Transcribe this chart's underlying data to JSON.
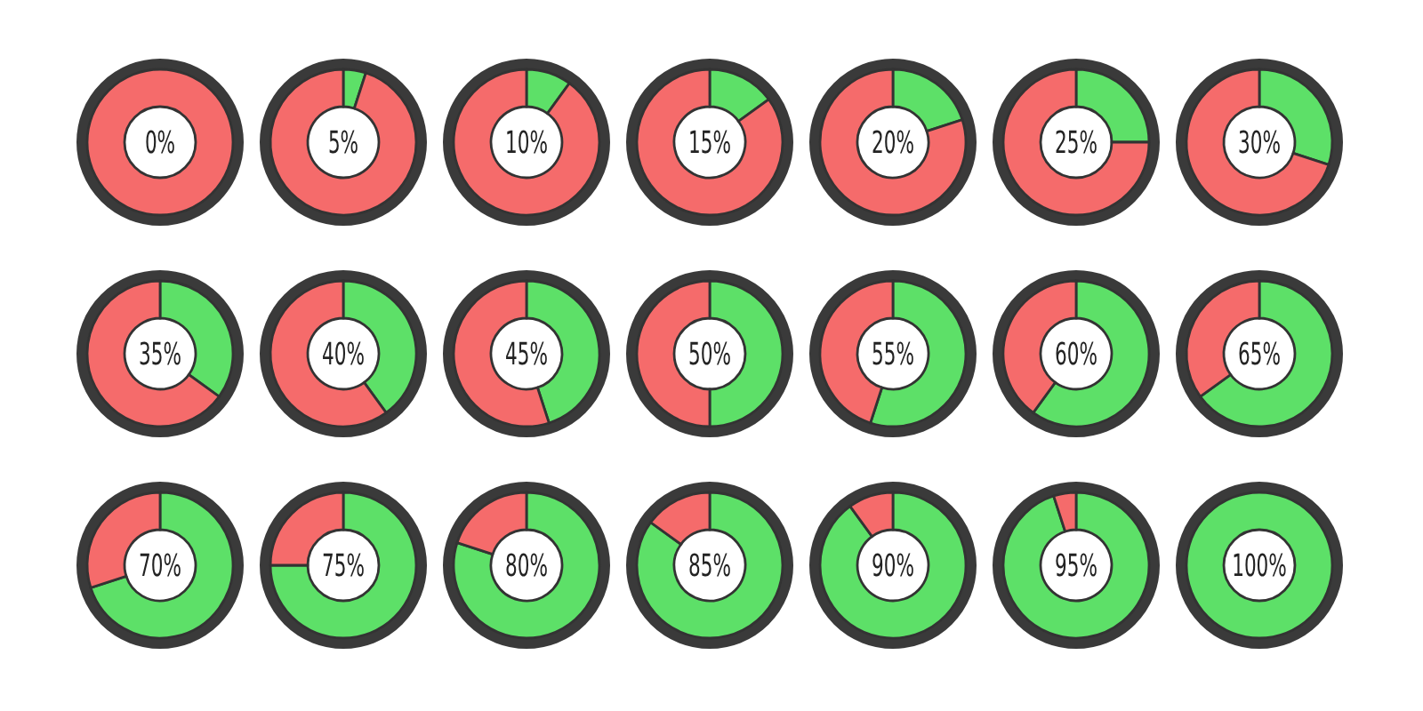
{
  "chart_data": [
    {
      "type": "donut",
      "categories": [
        null,
        null
      ],
      "values": [
        0,
        100
      ],
      "colors": [
        "#5de068",
        "#f56b6b"
      ],
      "annotations": [
        "0%"
      ]
    },
    {
      "type": "donut",
      "categories": [
        null,
        null
      ],
      "values": [
        5,
        95
      ],
      "colors": [
        "#5de068",
        "#f56b6b"
      ],
      "annotations": [
        "5%"
      ]
    },
    {
      "type": "donut",
      "categories": [
        null,
        null
      ],
      "values": [
        10,
        90
      ],
      "colors": [
        "#5de068",
        "#f56b6b"
      ],
      "annotations": [
        "10%"
      ]
    },
    {
      "type": "donut",
      "categories": [
        null,
        null
      ],
      "values": [
        15,
        85
      ],
      "colors": [
        "#5de068",
        "#f56b6b"
      ],
      "annotations": [
        "15%"
      ]
    },
    {
      "type": "donut",
      "categories": [
        null,
        null
      ],
      "values": [
        20,
        80
      ],
      "colors": [
        "#5de068",
        "#f56b6b"
      ],
      "annotations": [
        "20%"
      ]
    },
    {
      "type": "donut",
      "categories": [
        null,
        null
      ],
      "values": [
        25,
        75
      ],
      "colors": [
        "#5de068",
        "#f56b6b"
      ],
      "annotations": [
        "25%"
      ]
    },
    {
      "type": "donut",
      "categories": [
        null,
        null
      ],
      "values": [
        30,
        70
      ],
      "colors": [
        "#5de068",
        "#f56b6b"
      ],
      "annotations": [
        "30%"
      ]
    },
    {
      "type": "donut",
      "categories": [
        null,
        null
      ],
      "values": [
        35,
        65
      ],
      "colors": [
        "#5de068",
        "#f56b6b"
      ],
      "annotations": [
        "35%"
      ]
    },
    {
      "type": "donut",
      "categories": [
        null,
        null
      ],
      "values": [
        40,
        60
      ],
      "colors": [
        "#5de068",
        "#f56b6b"
      ],
      "annotations": [
        "40%"
      ]
    },
    {
      "type": "donut",
      "categories": [
        null,
        null
      ],
      "values": [
        45,
        55
      ],
      "colors": [
        "#5de068",
        "#f56b6b"
      ],
      "annotations": [
        "45%"
      ]
    },
    {
      "type": "donut",
      "categories": [
        null,
        null
      ],
      "values": [
        50,
        50
      ],
      "colors": [
        "#5de068",
        "#f56b6b"
      ],
      "annotations": [
        "50%"
      ]
    },
    {
      "type": "donut",
      "categories": [
        null,
        null
      ],
      "values": [
        55,
        45
      ],
      "colors": [
        "#5de068",
        "#f56b6b"
      ],
      "annotations": [
        "55%"
      ]
    },
    {
      "type": "donut",
      "categories": [
        null,
        null
      ],
      "values": [
        60,
        40
      ],
      "colors": [
        "#5de068",
        "#f56b6b"
      ],
      "annotations": [
        "60%"
      ]
    },
    {
      "type": "donut",
      "categories": [
        null,
        null
      ],
      "values": [
        65,
        35
      ],
      "colors": [
        "#5de068",
        "#f56b6b"
      ],
      "annotations": [
        "65%"
      ]
    },
    {
      "type": "donut",
      "categories": [
        null,
        null
      ],
      "values": [
        70,
        30
      ],
      "colors": [
        "#5de068",
        "#f56b6b"
      ],
      "annotations": [
        "70%"
      ]
    },
    {
      "type": "donut",
      "categories": [
        null,
        null
      ],
      "values": [
        75,
        25
      ],
      "colors": [
        "#5de068",
        "#f56b6b"
      ],
      "annotations": [
        "75%"
      ]
    },
    {
      "type": "donut",
      "categories": [
        null,
        null
      ],
      "values": [
        80,
        20
      ],
      "colors": [
        "#5de068",
        "#f56b6b"
      ],
      "annotations": [
        "80%"
      ]
    },
    {
      "type": "donut",
      "categories": [
        null,
        null
      ],
      "values": [
        85,
        15
      ],
      "colors": [
        "#5de068",
        "#f56b6b"
      ],
      "annotations": [
        "85%"
      ]
    },
    {
      "type": "donut",
      "categories": [
        null,
        null
      ],
      "values": [
        90,
        10
      ],
      "colors": [
        "#5de068",
        "#f56b6b"
      ],
      "annotations": [
        "90%"
      ]
    },
    {
      "type": "donut",
      "categories": [
        null,
        null
      ],
      "values": [
        95,
        5
      ],
      "colors": [
        "#5de068",
        "#f56b6b"
      ],
      "annotations": [
        "95%"
      ]
    },
    {
      "type": "donut",
      "categories": [
        null,
        null
      ],
      "values": [
        100,
        0
      ],
      "colors": [
        "#5de068",
        "#f56b6b"
      ],
      "annotations": [
        "100%"
      ]
    }
  ]
}
